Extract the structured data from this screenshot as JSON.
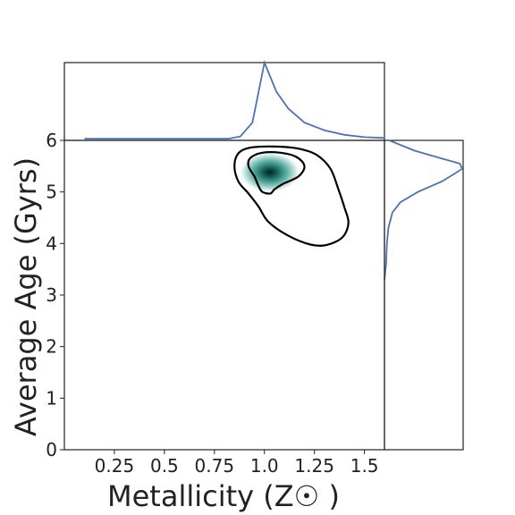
{
  "chart_data": {
    "type": "joint-density",
    "title": "",
    "xlabel": "Metallicity (Z☉ )",
    "ylabel": "Average Age (Gyrs)",
    "xlim": [
      0.0,
      1.6
    ],
    "ylim": [
      0,
      6
    ],
    "xticks": [
      0.25,
      0.5,
      0.75,
      1.0,
      1.25,
      1.5
    ],
    "xtick_labels": [
      "0.25",
      "0.5",
      "0.75",
      "1.0",
      "1.25",
      "1.5"
    ],
    "yticks": [
      0,
      1,
      2,
      3,
      4,
      5,
      6
    ],
    "ytick_labels": [
      "0",
      "1",
      "2",
      "3",
      "4",
      "5",
      "6"
    ],
    "grid": false,
    "colors": {
      "line": "#4c72b0",
      "contour": "#000000",
      "density_peak": "#0b3d33",
      "density_mid": "#3e9a8f",
      "density_low": "#cfe8e4"
    },
    "density_peak": {
      "x": 1.0,
      "y": 5.45
    },
    "contours": [
      {
        "level": "outer",
        "points": [
          [
            0.87,
            5.75
          ],
          [
            0.93,
            5.86
          ],
          [
            1.05,
            5.88
          ],
          [
            1.17,
            5.84
          ],
          [
            1.26,
            5.72
          ],
          [
            1.33,
            5.45
          ],
          [
            1.37,
            5.05
          ],
          [
            1.4,
            4.7
          ],
          [
            1.42,
            4.4
          ],
          [
            1.39,
            4.12
          ],
          [
            1.31,
            3.97
          ],
          [
            1.23,
            3.98
          ],
          [
            1.12,
            4.15
          ],
          [
            1.02,
            4.42
          ],
          [
            0.97,
            4.72
          ],
          [
            0.92,
            4.97
          ],
          [
            0.87,
            5.2
          ],
          [
            0.85,
            5.5
          ]
        ]
      },
      {
        "level": "inner",
        "points": [
          [
            0.93,
            5.66
          ],
          [
            0.99,
            5.76
          ],
          [
            1.08,
            5.76
          ],
          [
            1.16,
            5.68
          ],
          [
            1.2,
            5.5
          ],
          [
            1.17,
            5.3
          ],
          [
            1.09,
            5.15
          ],
          [
            1.05,
            5.05
          ],
          [
            1.03,
            4.97
          ],
          [
            0.99,
            5.0
          ],
          [
            0.97,
            5.12
          ],
          [
            0.95,
            5.3
          ],
          [
            0.92,
            5.5
          ]
        ]
      }
    ],
    "marginal_x": {
      "x": [
        0.1,
        0.3,
        0.5,
        0.7,
        0.82,
        0.88,
        0.94,
        1.0,
        1.06,
        1.12,
        1.2,
        1.3,
        1.4,
        1.5,
        1.6
      ],
      "density": [
        0.01,
        0.01,
        0.01,
        0.01,
        0.01,
        0.04,
        0.22,
        1.0,
        0.62,
        0.4,
        0.22,
        0.12,
        0.06,
        0.03,
        0.02
      ]
    },
    "marginal_y": {
      "y": [
        3.3,
        3.6,
        4.0,
        4.3,
        4.6,
        4.8,
        5.0,
        5.2,
        5.35,
        5.45,
        5.55,
        5.65,
        5.8,
        6.0
      ],
      "density": [
        0.0,
        0.02,
        0.03,
        0.05,
        0.1,
        0.2,
        0.42,
        0.72,
        0.88,
        0.98,
        0.95,
        0.72,
        0.38,
        0.06
      ]
    }
  }
}
